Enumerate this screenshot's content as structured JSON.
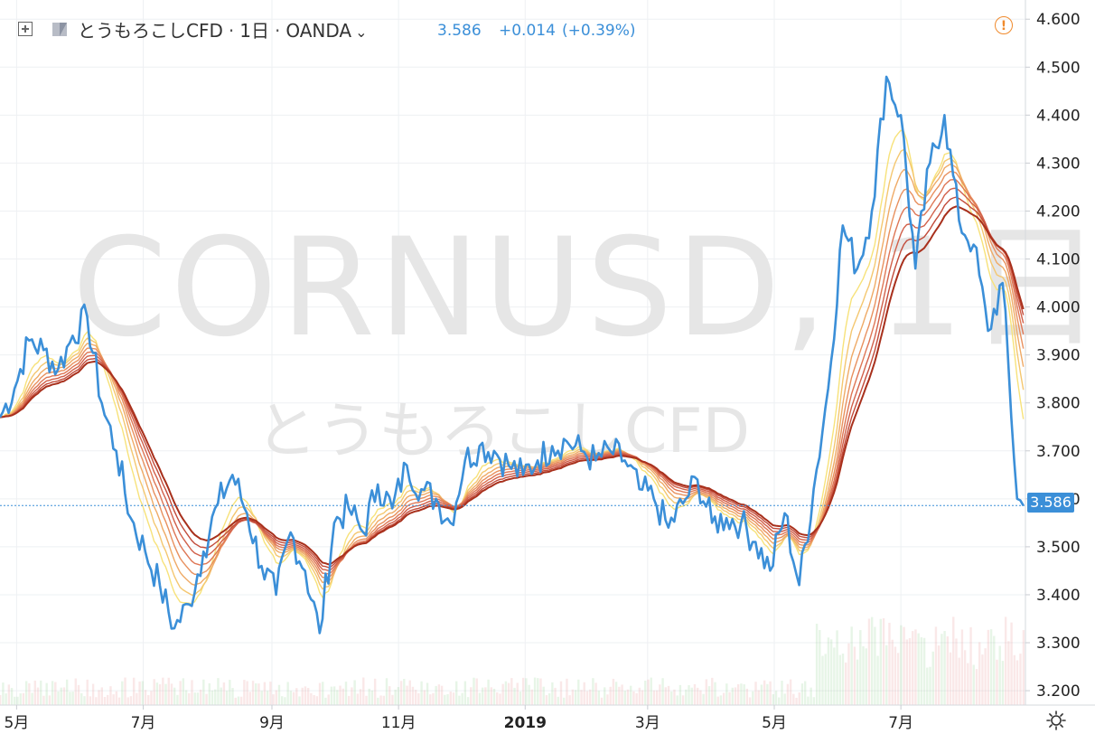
{
  "header": {
    "symbol_label": "とうもろこしCFD",
    "interval": "1日",
    "exchange": "OANDA",
    "last_price": "3.586",
    "change": "+0.014",
    "change_pct": "(+0.39%)"
  },
  "watermark": {
    "line1": "CORNUSD, 1日",
    "line2": "とうもろこしCFD"
  },
  "colors": {
    "price_line": "#3b8fd8",
    "axis_text": "#222222",
    "grid": "#eef0f3",
    "watermark": "#e4e4e4",
    "warning": "#f08a2c",
    "ma_fast": "#f7e27a",
    "ma_slow": "#a8301c"
  },
  "chart_data": {
    "type": "line",
    "y_axis": {
      "min": 3.17,
      "max": 4.64,
      "ticks": [
        3.2,
        3.3,
        3.4,
        3.5,
        3.6,
        3.7,
        3.8,
        3.9,
        4.0,
        4.1,
        4.2,
        4.3,
        4.4,
        4.5,
        4.6
      ],
      "tick_labels": [
        "3.200",
        "3.300",
        "3.400",
        "3.500",
        "3.600",
        "3.700",
        "3.800",
        "3.900",
        "4.000",
        "4.100",
        "4.200",
        "4.300",
        "4.400",
        "4.500",
        "4.600"
      ]
    },
    "x_axis": {
      "ticks": [
        {
          "date": "2018-05-01",
          "label": "5月"
        },
        {
          "date": "2018-07-01",
          "label": "7月"
        },
        {
          "date": "2018-09-01",
          "label": "9月"
        },
        {
          "date": "2018-11-01",
          "label": "11月"
        },
        {
          "date": "2019-01-01",
          "label": "2019"
        },
        {
          "date": "2019-03-01",
          "label": "3月"
        },
        {
          "date": "2019-05-01",
          "label": "5月"
        },
        {
          "date": "2019-07-01",
          "label": "7月"
        }
      ],
      "min": "2018-04-23",
      "max": "2019-08-30"
    },
    "current_price": 3.586,
    "series": [
      {
        "values": [
          [
            "2018-04-23",
            3.77
          ],
          [
            "2018-04-30",
            3.83
          ],
          [
            "2018-05-07",
            3.93
          ],
          [
            "2018-05-14",
            3.91
          ],
          [
            "2018-05-21",
            3.87
          ],
          [
            "2018-05-28",
            3.94
          ],
          [
            "2018-06-04",
            3.98
          ],
          [
            "2018-06-11",
            3.8
          ],
          [
            "2018-06-18",
            3.7
          ],
          [
            "2018-06-25",
            3.56
          ],
          [
            "2018-07-02",
            3.49
          ],
          [
            "2018-07-09",
            3.42
          ],
          [
            "2018-07-16",
            3.33
          ],
          [
            "2018-07-23",
            3.38
          ],
          [
            "2018-07-30",
            3.49
          ],
          [
            "2018-08-06",
            3.59
          ],
          [
            "2018-08-13",
            3.65
          ],
          [
            "2018-08-20",
            3.57
          ],
          [
            "2018-08-27",
            3.46
          ],
          [
            "2018-09-03",
            3.4
          ],
          [
            "2018-09-10",
            3.53
          ],
          [
            "2018-09-17",
            3.45
          ],
          [
            "2018-09-24",
            3.32
          ],
          [
            "2018-10-01",
            3.55
          ],
          [
            "2018-10-08",
            3.58
          ],
          [
            "2018-10-15",
            3.53
          ],
          [
            "2018-10-22",
            3.63
          ],
          [
            "2018-10-29",
            3.58
          ],
          [
            "2018-11-05",
            3.67
          ],
          [
            "2018-11-12",
            3.62
          ],
          [
            "2018-11-19",
            3.6
          ],
          [
            "2018-11-26",
            3.55
          ],
          [
            "2018-12-03",
            3.68
          ],
          [
            "2018-12-10",
            3.71
          ],
          [
            "2018-12-17",
            3.7
          ],
          [
            "2018-12-24",
            3.67
          ],
          [
            "2018-12-31",
            3.65
          ],
          [
            "2019-01-07",
            3.68
          ],
          [
            "2019-01-14",
            3.71
          ],
          [
            "2019-01-21",
            3.72
          ],
          [
            "2019-01-28",
            3.7
          ],
          [
            "2019-02-04",
            3.68
          ],
          [
            "2019-02-11",
            3.7
          ],
          [
            "2019-02-18",
            3.68
          ],
          [
            "2019-02-25",
            3.62
          ],
          [
            "2019-03-04",
            3.6
          ],
          [
            "2019-03-11",
            3.54
          ],
          [
            "2019-03-18",
            3.59
          ],
          [
            "2019-03-25",
            3.64
          ],
          [
            "2019-04-01",
            3.55
          ],
          [
            "2019-04-08",
            3.56
          ],
          [
            "2019-04-15",
            3.55
          ],
          [
            "2019-04-22",
            3.51
          ],
          [
            "2019-04-29",
            3.45
          ],
          [
            "2019-05-06",
            3.57
          ],
          [
            "2019-05-13",
            3.42
          ],
          [
            "2019-05-20",
            3.62
          ],
          [
            "2019-05-27",
            3.83
          ],
          [
            "2019-06-03",
            4.17
          ],
          [
            "2019-06-10",
            4.08
          ],
          [
            "2019-06-17",
            4.2
          ],
          [
            "2019-06-24",
            4.48
          ],
          [
            "2019-07-01",
            4.4
          ],
          [
            "2019-07-08",
            4.08
          ],
          [
            "2019-07-15",
            4.3
          ],
          [
            "2019-07-22",
            4.4
          ],
          [
            "2019-07-29",
            4.18
          ],
          [
            "2019-08-05",
            4.13
          ],
          [
            "2019-08-12",
            3.95
          ],
          [
            "2019-08-19",
            4.05
          ],
          [
            "2019-08-26",
            3.6
          ],
          [
            "2019-08-29",
            3.586
          ]
        ]
      }
    ]
  }
}
